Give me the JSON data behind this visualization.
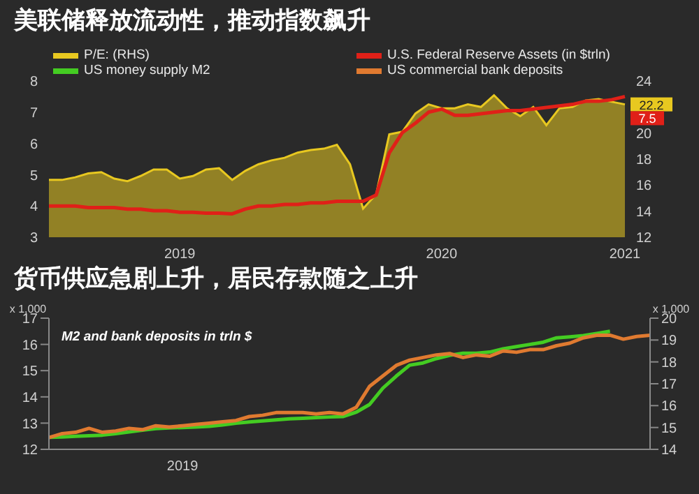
{
  "chart_data": [
    {
      "type": "area",
      "title": "美联储释放流动性，推动指数飙升",
      "categories": [
        null,
        null,
        null,
        null,
        null,
        null,
        null,
        null,
        null,
        null,
        "2019",
        null,
        null,
        null,
        null,
        null,
        null,
        null,
        null,
        null,
        null,
        null,
        null,
        null,
        null,
        null,
        null,
        null,
        null,
        null,
        "2020",
        null,
        null,
        null,
        null,
        null,
        null,
        null,
        null,
        null,
        null,
        null,
        null,
        null,
        "2021"
      ],
      "series": [
        {
          "name": "P/E: (RHS)",
          "axis": "y2",
          "color": "#e8c820",
          "values": [
            16.4,
            16.4,
            16.6,
            16.9,
            17.0,
            16.5,
            16.3,
            16.7,
            17.2,
            17.2,
            16.5,
            16.7,
            17.2,
            17.3,
            16.4,
            17.1,
            17.6,
            17.9,
            18.1,
            18.5,
            18.7,
            18.8,
            19.1,
            17.6,
            14.2,
            15.3,
            19.9,
            20.1,
            21.5,
            22.2,
            21.9,
            21.9,
            22.2,
            22.0,
            22.9,
            21.9,
            21.3,
            22.0,
            20.6,
            21.9,
            22.0,
            22.5,
            22.6,
            22.4,
            22.2
          ],
          "value_labels": [
            null,
            null,
            null,
            null,
            null,
            null,
            null,
            null,
            null,
            null,
            null,
            null,
            null,
            null,
            null,
            null,
            null,
            null,
            null,
            null,
            null,
            null,
            null,
            null,
            null,
            null,
            null,
            null,
            null,
            null,
            null,
            null,
            null,
            null,
            null,
            null,
            null,
            null,
            null,
            null,
            null,
            null,
            null,
            null,
            "22.2"
          ]
        },
        {
          "name": "U.S. Federal Reserve Assets (in $trln)",
          "type": "line",
          "axis": "y",
          "color": "#e02018",
          "values": [
            4.0,
            4.0,
            4.0,
            3.95,
            3.95,
            3.95,
            3.9,
            3.9,
            3.85,
            3.85,
            3.8,
            3.8,
            3.77,
            3.77,
            3.75,
            3.9,
            4.0,
            4.0,
            4.05,
            4.05,
            4.1,
            4.1,
            4.15,
            4.15,
            4.15,
            4.35,
            5.7,
            6.35,
            6.65,
            7.0,
            7.1,
            6.9,
            6.9,
            6.95,
            7.0,
            7.05,
            7.05,
            7.1,
            7.15,
            7.2,
            7.25,
            7.35,
            7.35,
            7.4,
            7.5
          ],
          "value_labels": [
            null,
            null,
            null,
            null,
            null,
            null,
            null,
            null,
            null,
            null,
            null,
            null,
            null,
            null,
            null,
            null,
            null,
            null,
            null,
            null,
            null,
            null,
            null,
            null,
            null,
            null,
            null,
            null,
            null,
            null,
            null,
            null,
            null,
            null,
            null,
            null,
            null,
            null,
            null,
            null,
            null,
            null,
            null,
            null,
            "7.5"
          ]
        }
      ],
      "ylim": [
        3,
        8
      ],
      "yticks": [
        3,
        4,
        5,
        6,
        7,
        8
      ],
      "y2lim": [
        12,
        24
      ],
      "y2ticks": [
        12,
        14,
        16,
        18,
        20,
        24
      ],
      "legend": "top"
    },
    {
      "type": "line",
      "title": "货币供应急剧上升，居民存款随之上升",
      "ylabel": "x 1,000",
      "y2label": "x 1,000",
      "annotations": [
        "M2 and bank deposits in trln $"
      ],
      "categories": [
        null,
        null,
        null,
        null,
        null,
        null,
        null,
        null,
        null,
        null,
        "2019",
        null,
        null,
        null,
        null,
        null,
        null,
        null,
        null,
        null,
        null,
        null,
        null,
        null,
        null,
        null,
        null,
        null,
        null,
        null,
        null,
        null,
        null,
        null,
        null,
        null,
        null,
        null,
        null,
        null,
        null,
        null,
        null,
        null,
        null,
        null
      ],
      "series": [
        {
          "name": "US money supply M2",
          "axis": "y2",
          "color": "#44cc22",
          "values": [
            14.55,
            14.57,
            14.6,
            14.62,
            14.65,
            14.72,
            14.8,
            14.88,
            14.95,
            14.98,
            15.0,
            15.02,
            15.05,
            15.12,
            15.2,
            15.25,
            15.3,
            15.35,
            15.4,
            15.42,
            15.45,
            15.48,
            15.5,
            15.7,
            16.05,
            16.8,
            17.35,
            17.85,
            17.95,
            18.15,
            18.3,
            18.4,
            18.4,
            18.45,
            18.6,
            18.7,
            18.8,
            18.9,
            19.1,
            19.15,
            19.2,
            19.3,
            19.4,
            null,
            null,
            null
          ]
        },
        {
          "name": "US commercial bank deposits",
          "axis": "y",
          "color": "#e07a30",
          "values": [
            12.45,
            12.6,
            12.65,
            12.8,
            12.65,
            12.7,
            12.8,
            12.75,
            12.9,
            12.85,
            12.9,
            12.95,
            13.0,
            13.05,
            13.1,
            13.25,
            13.3,
            13.4,
            13.4,
            13.4,
            13.35,
            13.4,
            13.35,
            13.6,
            14.4,
            14.8,
            15.2,
            15.4,
            15.5,
            15.6,
            15.65,
            15.5,
            15.6,
            15.55,
            15.75,
            15.7,
            15.8,
            15.8,
            15.95,
            16.05,
            16.25,
            16.35,
            16.35,
            16.2,
            16.3,
            16.35
          ]
        }
      ],
      "ylim": [
        12,
        17
      ],
      "yticks": [
        12,
        13,
        14,
        15,
        16,
        17
      ],
      "y2lim": [
        14,
        20
      ],
      "y2ticks": [
        14,
        15,
        16,
        17,
        18,
        19,
        20
      ]
    }
  ]
}
